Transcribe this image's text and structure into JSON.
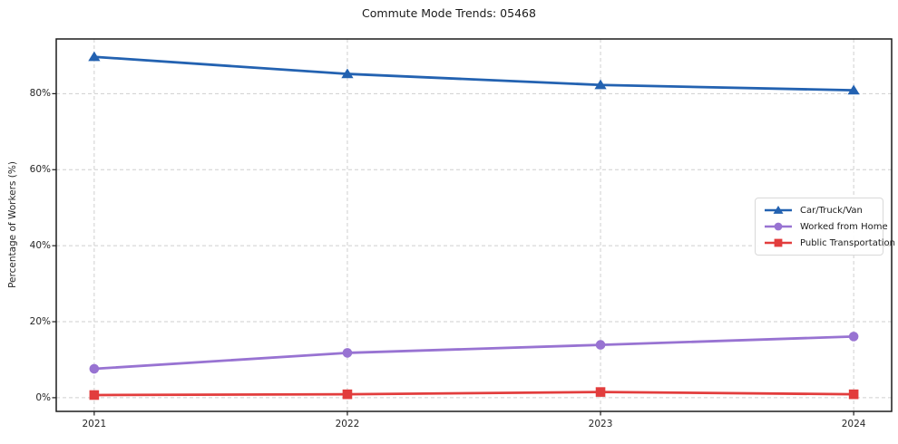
{
  "figure": {
    "background": "#ffffff"
  },
  "chart_data": {
    "type": "line",
    "title": "Commute Mode Trends: 05468",
    "xlabel": "",
    "ylabel": "Percentage of Workers (%)",
    "x": [
      2021,
      2022,
      2023,
      2024
    ],
    "x_tick_labels": [
      "2021",
      "2022",
      "2023",
      "2024"
    ],
    "y_ticks": [
      0,
      20,
      40,
      60,
      80
    ],
    "y_tick_labels": [
      "0%",
      "20%",
      "40%",
      "60%",
      "80%"
    ],
    "xlim": [
      2020.85,
      2024.15
    ],
    "ylim": [
      -3.6,
      94.4
    ],
    "grid": true,
    "grid_style": "dashed",
    "legend_position": "middle-right",
    "series": [
      {
        "name": "Car/Truck/Van",
        "color": "#2362b1",
        "marker": "triangle",
        "values": [
          89.7,
          85.2,
          82.3,
          80.9
        ]
      },
      {
        "name": "Worked from Home",
        "color": "#9873d2",
        "marker": "circle",
        "values": [
          7.6,
          11.8,
          13.9,
          16.1
        ]
      },
      {
        "name": "Public Transportation",
        "color": "#e23d3d",
        "marker": "square",
        "values": [
          0.7,
          0.9,
          1.5,
          0.9
        ]
      }
    ]
  },
  "style": {
    "grid_color": "#cfcfcf",
    "spine_color": "#1c1c1c",
    "tick_text_color": "#262626",
    "legend_border_color": "#d9d9d9"
  }
}
